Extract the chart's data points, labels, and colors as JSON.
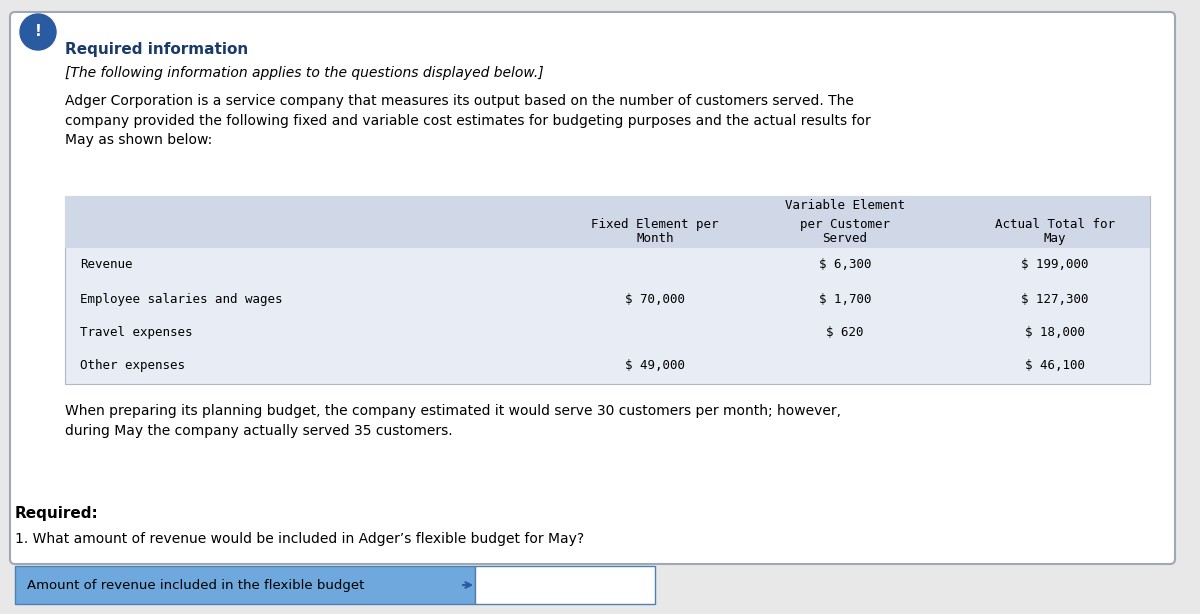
{
  "required_info_title": "Required information",
  "italic_line": "[The following information applies to the questions displayed below.]",
  "paragraph": "Adger Corporation is a service company that measures its output based on the number of customers served. The\ncompany provided the following fixed and variable cost estimates for budgeting purposes and the actual results for\nMay as shown below:",
  "table_header_row1": [
    "",
    "Variable Element",
    ""
  ],
  "table_header_row2": [
    "Fixed Element per\n    Month",
    "per Customer\n   Served",
    "Actual Total for\n       May"
  ],
  "table_rows": [
    [
      "Revenue",
      "",
      "$ 6,300",
      "$ 199,000"
    ],
    [
      "Employee salaries and wages",
      "$ 70,000",
      "$ 1,700",
      "$ 127,300"
    ],
    [
      "Travel expenses",
      "",
      "$ 620",
      "$ 18,000"
    ],
    [
      "Other expenses",
      "$ 49,000",
      "",
      "$ 46,100"
    ]
  ],
  "planning_text": "When preparing its planning budget, the company estimated it would serve 30 customers per month; however,\nduring May the company actually served 35 customers.",
  "required_label": "Required:",
  "question": "1. What amount of revenue would be included in Adger’s flexible budget for May?",
  "answer_label": "Amount of revenue included in the flexible budget",
  "bg_color": "#f5f5f5",
  "outer_border_color": "#c0c0c0",
  "table_header_bg": "#d0d8e8",
  "table_bg": "#e8ecf4",
  "answer_bg": "#6fa8dc",
  "answer_box_bg": "#ffffff",
  "icon_color": "#2a5a9f",
  "title_color": "#1a3a6a",
  "header_font_size": 11,
  "body_font_size": 10,
  "mono_font_size": 9
}
